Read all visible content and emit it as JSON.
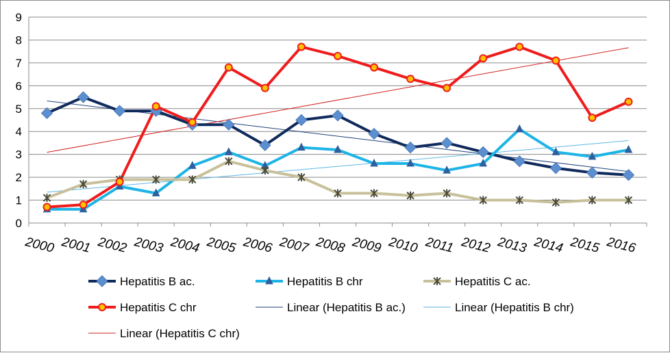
{
  "chart_data": {
    "type": "line",
    "title": "",
    "xlabel": "",
    "ylabel": "",
    "categories": [
      "2000",
      "2001",
      "2002",
      "2003",
      "2004",
      "2005",
      "2006",
      "2007",
      "2008",
      "2009",
      "2010",
      "2011",
      "2012",
      "2013",
      "2014",
      "2015",
      "2016"
    ],
    "ylim": [
      0,
      9
    ],
    "yticks": [
      "0",
      "1",
      "2",
      "3",
      "4",
      "5",
      "6",
      "7",
      "8",
      "9"
    ],
    "grid": "horizontal",
    "legend_position": "bottom",
    "series": [
      {
        "name": "Hepatitis B ac.",
        "color": "#0f2a5c",
        "marker": "diamond",
        "marker_color": "#5b8fd0",
        "values": [
          4.8,
          5.5,
          4.9,
          4.9,
          4.3,
          4.3,
          3.4,
          4.5,
          4.7,
          3.9,
          3.3,
          3.5,
          3.1,
          2.7,
          2.4,
          2.2,
          2.1
        ]
      },
      {
        "name": "Hepatitis B chr",
        "color": "#1eb4e6",
        "marker": "triangle",
        "marker_color": "#2f5f9e",
        "values": [
          0.6,
          0.6,
          1.6,
          1.3,
          2.5,
          3.1,
          2.5,
          3.3,
          3.2,
          2.6,
          2.6,
          2.3,
          2.6,
          4.1,
          3.1,
          2.9,
          3.2
        ]
      },
      {
        "name": "Hepatitis C ac.",
        "color": "#c8c09a",
        "marker": "asterisk",
        "marker_color": "#4a4a3a",
        "values": [
          1.1,
          1.7,
          1.9,
          1.9,
          1.9,
          2.7,
          2.3,
          2.0,
          1.3,
          1.3,
          1.2,
          1.3,
          1.0,
          1.0,
          0.9,
          1.0,
          1.0
        ]
      },
      {
        "name": "Hepatitis C chr",
        "color": "#ee1c1c",
        "marker": "circle",
        "marker_color": "#ffc000",
        "values": [
          0.7,
          0.8,
          1.8,
          5.1,
          4.4,
          6.8,
          5.9,
          7.7,
          7.3,
          6.8,
          6.3,
          5.9,
          7.2,
          7.7,
          7.1,
          4.6,
          5.3
        ]
      }
    ],
    "trendlines": [
      {
        "name": "Linear (Hepatitis B ac.)",
        "of": 0,
        "color": "#1f3f7a"
      },
      {
        "name": "Linear (Hepatitis B chr)",
        "of": 1,
        "color": "#5bb6e6"
      },
      {
        "name": "Linear (Hepatitis C chr)",
        "of": 3,
        "color": "#d22020"
      }
    ]
  }
}
